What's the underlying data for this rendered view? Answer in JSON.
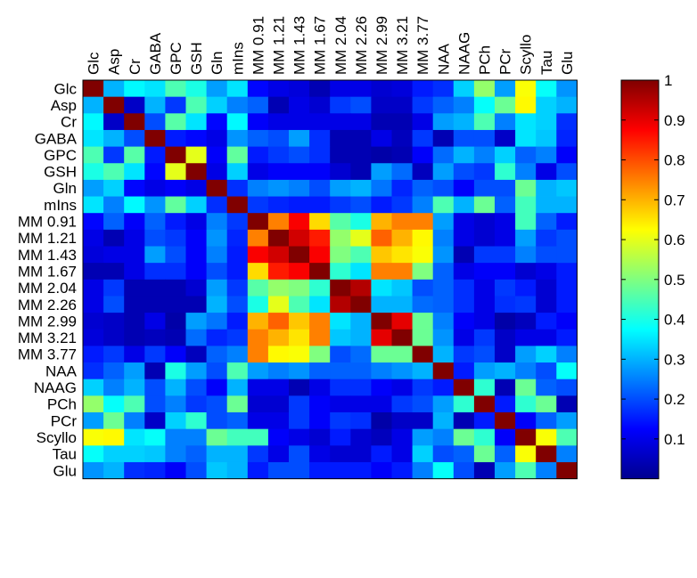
{
  "chart_data": {
    "type": "heatmap",
    "labels": [
      "Glc",
      "Asp",
      "Cr",
      "GABA",
      "GPC",
      "GSH",
      "Gln",
      "mIns",
      "MM 0.91",
      "MM 1.21",
      "MM 1.43",
      "MM 1.67",
      "MM 2.04",
      "MM 2.26",
      "MM 2.99",
      "MM 3.21",
      "MM 3.77",
      "NAA",
      "NAAG",
      "PCh",
      "PCr",
      "Scyllo",
      "Tau",
      "Glu"
    ],
    "values": [
      [
        1.0,
        0.3,
        0.37,
        0.35,
        0.45,
        0.4,
        0.28,
        0.35,
        0.13,
        0.1,
        0.09,
        0.05,
        0.1,
        0.1,
        0.08,
        0.09,
        0.15,
        0.17,
        0.33,
        0.52,
        0.28,
        0.62,
        0.38,
        0.27
      ],
      [
        0.3,
        1.0,
        0.07,
        0.3,
        0.18,
        0.45,
        0.33,
        0.25,
        0.22,
        0.05,
        0.1,
        0.08,
        0.18,
        0.2,
        0.07,
        0.07,
        0.18,
        0.22,
        0.25,
        0.38,
        0.48,
        0.63,
        0.33,
        0.3
      ],
      [
        0.37,
        0.07,
        1.0,
        0.2,
        0.46,
        0.35,
        0.13,
        0.37,
        0.12,
        0.1,
        0.1,
        0.1,
        0.1,
        0.1,
        0.05,
        0.05,
        0.1,
        0.28,
        0.3,
        0.45,
        0.25,
        0.35,
        0.33,
        0.17
      ],
      [
        0.35,
        0.3,
        0.2,
        1.0,
        0.15,
        0.13,
        0.1,
        0.27,
        0.22,
        0.2,
        0.28,
        0.17,
        0.05,
        0.05,
        0.1,
        0.06,
        0.18,
        0.05,
        0.2,
        0.2,
        0.07,
        0.35,
        0.32,
        0.16
      ],
      [
        0.45,
        0.18,
        0.46,
        0.15,
        1.0,
        0.6,
        0.12,
        0.47,
        0.15,
        0.18,
        0.2,
        0.17,
        0.05,
        0.05,
        0.04,
        0.05,
        0.12,
        0.23,
        0.3,
        0.25,
        0.33,
        0.22,
        0.25,
        0.12
      ],
      [
        0.4,
        0.45,
        0.35,
        0.13,
        0.6,
        1.0,
        0.1,
        0.33,
        0.1,
        0.12,
        0.12,
        0.12,
        0.08,
        0.05,
        0.28,
        0.23,
        0.06,
        0.28,
        0.2,
        0.18,
        0.42,
        0.25,
        0.1,
        0.2
      ],
      [
        0.28,
        0.33,
        0.13,
        0.1,
        0.12,
        0.1,
        1.0,
        0.17,
        0.25,
        0.27,
        0.25,
        0.2,
        0.28,
        0.3,
        0.24,
        0.16,
        0.22,
        0.2,
        0.12,
        0.2,
        0.2,
        0.48,
        0.3,
        0.32
      ],
      [
        0.35,
        0.25,
        0.37,
        0.27,
        0.47,
        0.33,
        0.17,
        1.0,
        0.18,
        0.16,
        0.15,
        0.15,
        0.18,
        0.2,
        0.15,
        0.18,
        0.25,
        0.45,
        0.3,
        0.48,
        0.22,
        0.44,
        0.3,
        0.3
      ],
      [
        0.13,
        0.22,
        0.12,
        0.22,
        0.15,
        0.1,
        0.25,
        0.18,
        1.0,
        0.75,
        0.88,
        0.66,
        0.46,
        0.4,
        0.7,
        0.75,
        0.75,
        0.28,
        0.1,
        0.08,
        0.1,
        0.44,
        0.22,
        0.15
      ],
      [
        0.1,
        0.05,
        0.1,
        0.2,
        0.18,
        0.12,
        0.27,
        0.16,
        0.75,
        1.0,
        0.92,
        0.85,
        0.52,
        0.6,
        0.78,
        0.7,
        0.63,
        0.25,
        0.1,
        0.08,
        0.1,
        0.28,
        0.18,
        0.2
      ],
      [
        0.09,
        0.1,
        0.1,
        0.28,
        0.2,
        0.12,
        0.25,
        0.15,
        0.88,
        0.92,
        1.0,
        0.88,
        0.5,
        0.45,
        0.68,
        0.65,
        0.62,
        0.27,
        0.05,
        0.18,
        0.18,
        0.25,
        0.2,
        0.2
      ],
      [
        0.05,
        0.05,
        0.1,
        0.17,
        0.17,
        0.12,
        0.2,
        0.15,
        0.66,
        0.85,
        0.88,
        1.0,
        0.42,
        0.35,
        0.75,
        0.75,
        0.5,
        0.22,
        0.1,
        0.12,
        0.12,
        0.08,
        0.1,
        0.15
      ],
      [
        0.1,
        0.18,
        0.05,
        0.05,
        0.05,
        0.08,
        0.28,
        0.18,
        0.46,
        0.52,
        0.5,
        0.42,
        1.0,
        0.95,
        0.35,
        0.32,
        0.2,
        0.22,
        0.17,
        0.1,
        0.18,
        0.15,
        0.08,
        0.15
      ],
      [
        0.1,
        0.2,
        0.05,
        0.05,
        0.05,
        0.05,
        0.3,
        0.2,
        0.4,
        0.6,
        0.45,
        0.35,
        0.95,
        1.0,
        0.3,
        0.3,
        0.23,
        0.22,
        0.17,
        0.1,
        0.17,
        0.18,
        0.08,
        0.15
      ],
      [
        0.08,
        0.07,
        0.05,
        0.1,
        0.04,
        0.28,
        0.24,
        0.15,
        0.7,
        0.78,
        0.68,
        0.75,
        0.35,
        0.3,
        1.0,
        0.9,
        0.48,
        0.25,
        0.12,
        0.1,
        0.04,
        0.06,
        0.15,
        0.12
      ],
      [
        0.09,
        0.07,
        0.05,
        0.06,
        0.05,
        0.23,
        0.16,
        0.18,
        0.75,
        0.7,
        0.65,
        0.75,
        0.32,
        0.3,
        0.9,
        1.0,
        0.48,
        0.27,
        0.1,
        0.18,
        0.07,
        0.1,
        0.1,
        0.15
      ],
      [
        0.15,
        0.18,
        0.1,
        0.18,
        0.12,
        0.06,
        0.22,
        0.25,
        0.75,
        0.63,
        0.62,
        0.5,
        0.2,
        0.23,
        0.48,
        0.48,
        1.0,
        0.3,
        0.18,
        0.2,
        0.07,
        0.28,
        0.33,
        0.25
      ],
      [
        0.17,
        0.22,
        0.28,
        0.05,
        0.4,
        0.28,
        0.2,
        0.45,
        0.28,
        0.25,
        0.27,
        0.22,
        0.22,
        0.22,
        0.25,
        0.27,
        0.3,
        1.0,
        0.15,
        0.28,
        0.3,
        0.25,
        0.2,
        0.38
      ],
      [
        0.33,
        0.25,
        0.3,
        0.2,
        0.3,
        0.2,
        0.12,
        0.3,
        0.1,
        0.1,
        0.05,
        0.1,
        0.17,
        0.17,
        0.12,
        0.1,
        0.18,
        0.15,
        1.0,
        0.42,
        0.05,
        0.48,
        0.22,
        0.2
      ],
      [
        0.52,
        0.38,
        0.45,
        0.2,
        0.25,
        0.18,
        0.2,
        0.48,
        0.08,
        0.08,
        0.18,
        0.12,
        0.1,
        0.1,
        0.1,
        0.18,
        0.2,
        0.28,
        0.42,
        1.0,
        0.15,
        0.42,
        0.48,
        0.05
      ],
      [
        0.28,
        0.48,
        0.25,
        0.07,
        0.33,
        0.42,
        0.2,
        0.22,
        0.1,
        0.1,
        0.18,
        0.12,
        0.18,
        0.17,
        0.04,
        0.07,
        0.07,
        0.3,
        0.05,
        0.15,
        1.0,
        0.12,
        0.22,
        0.28
      ],
      [
        0.62,
        0.63,
        0.35,
        0.38,
        0.25,
        0.25,
        0.48,
        0.44,
        0.44,
        0.12,
        0.1,
        0.08,
        0.15,
        0.08,
        0.06,
        0.1,
        0.28,
        0.25,
        0.48,
        0.42,
        0.12,
        1.0,
        0.62,
        0.45
      ],
      [
        0.38,
        0.33,
        0.33,
        0.32,
        0.25,
        0.22,
        0.3,
        0.3,
        0.18,
        0.1,
        0.2,
        0.1,
        0.08,
        0.08,
        0.15,
        0.1,
        0.33,
        0.2,
        0.22,
        0.48,
        0.22,
        0.62,
        1.0,
        0.25
      ],
      [
        0.27,
        0.3,
        0.17,
        0.16,
        0.12,
        0.2,
        0.32,
        0.3,
        0.15,
        0.2,
        0.2,
        0.15,
        0.15,
        0.15,
        0.12,
        0.15,
        0.25,
        0.38,
        0.2,
        0.05,
        0.28,
        0.45,
        0.25,
        1.0
      ]
    ],
    "colormap": "jet",
    "colorbar": {
      "min": 0,
      "max": 1,
      "ticks": [
        0.1,
        0.2,
        0.3,
        0.4,
        0.5,
        0.6,
        0.7,
        0.8,
        0.9,
        1
      ]
    },
    "title": "",
    "xlabel": "",
    "ylabel": ""
  }
}
